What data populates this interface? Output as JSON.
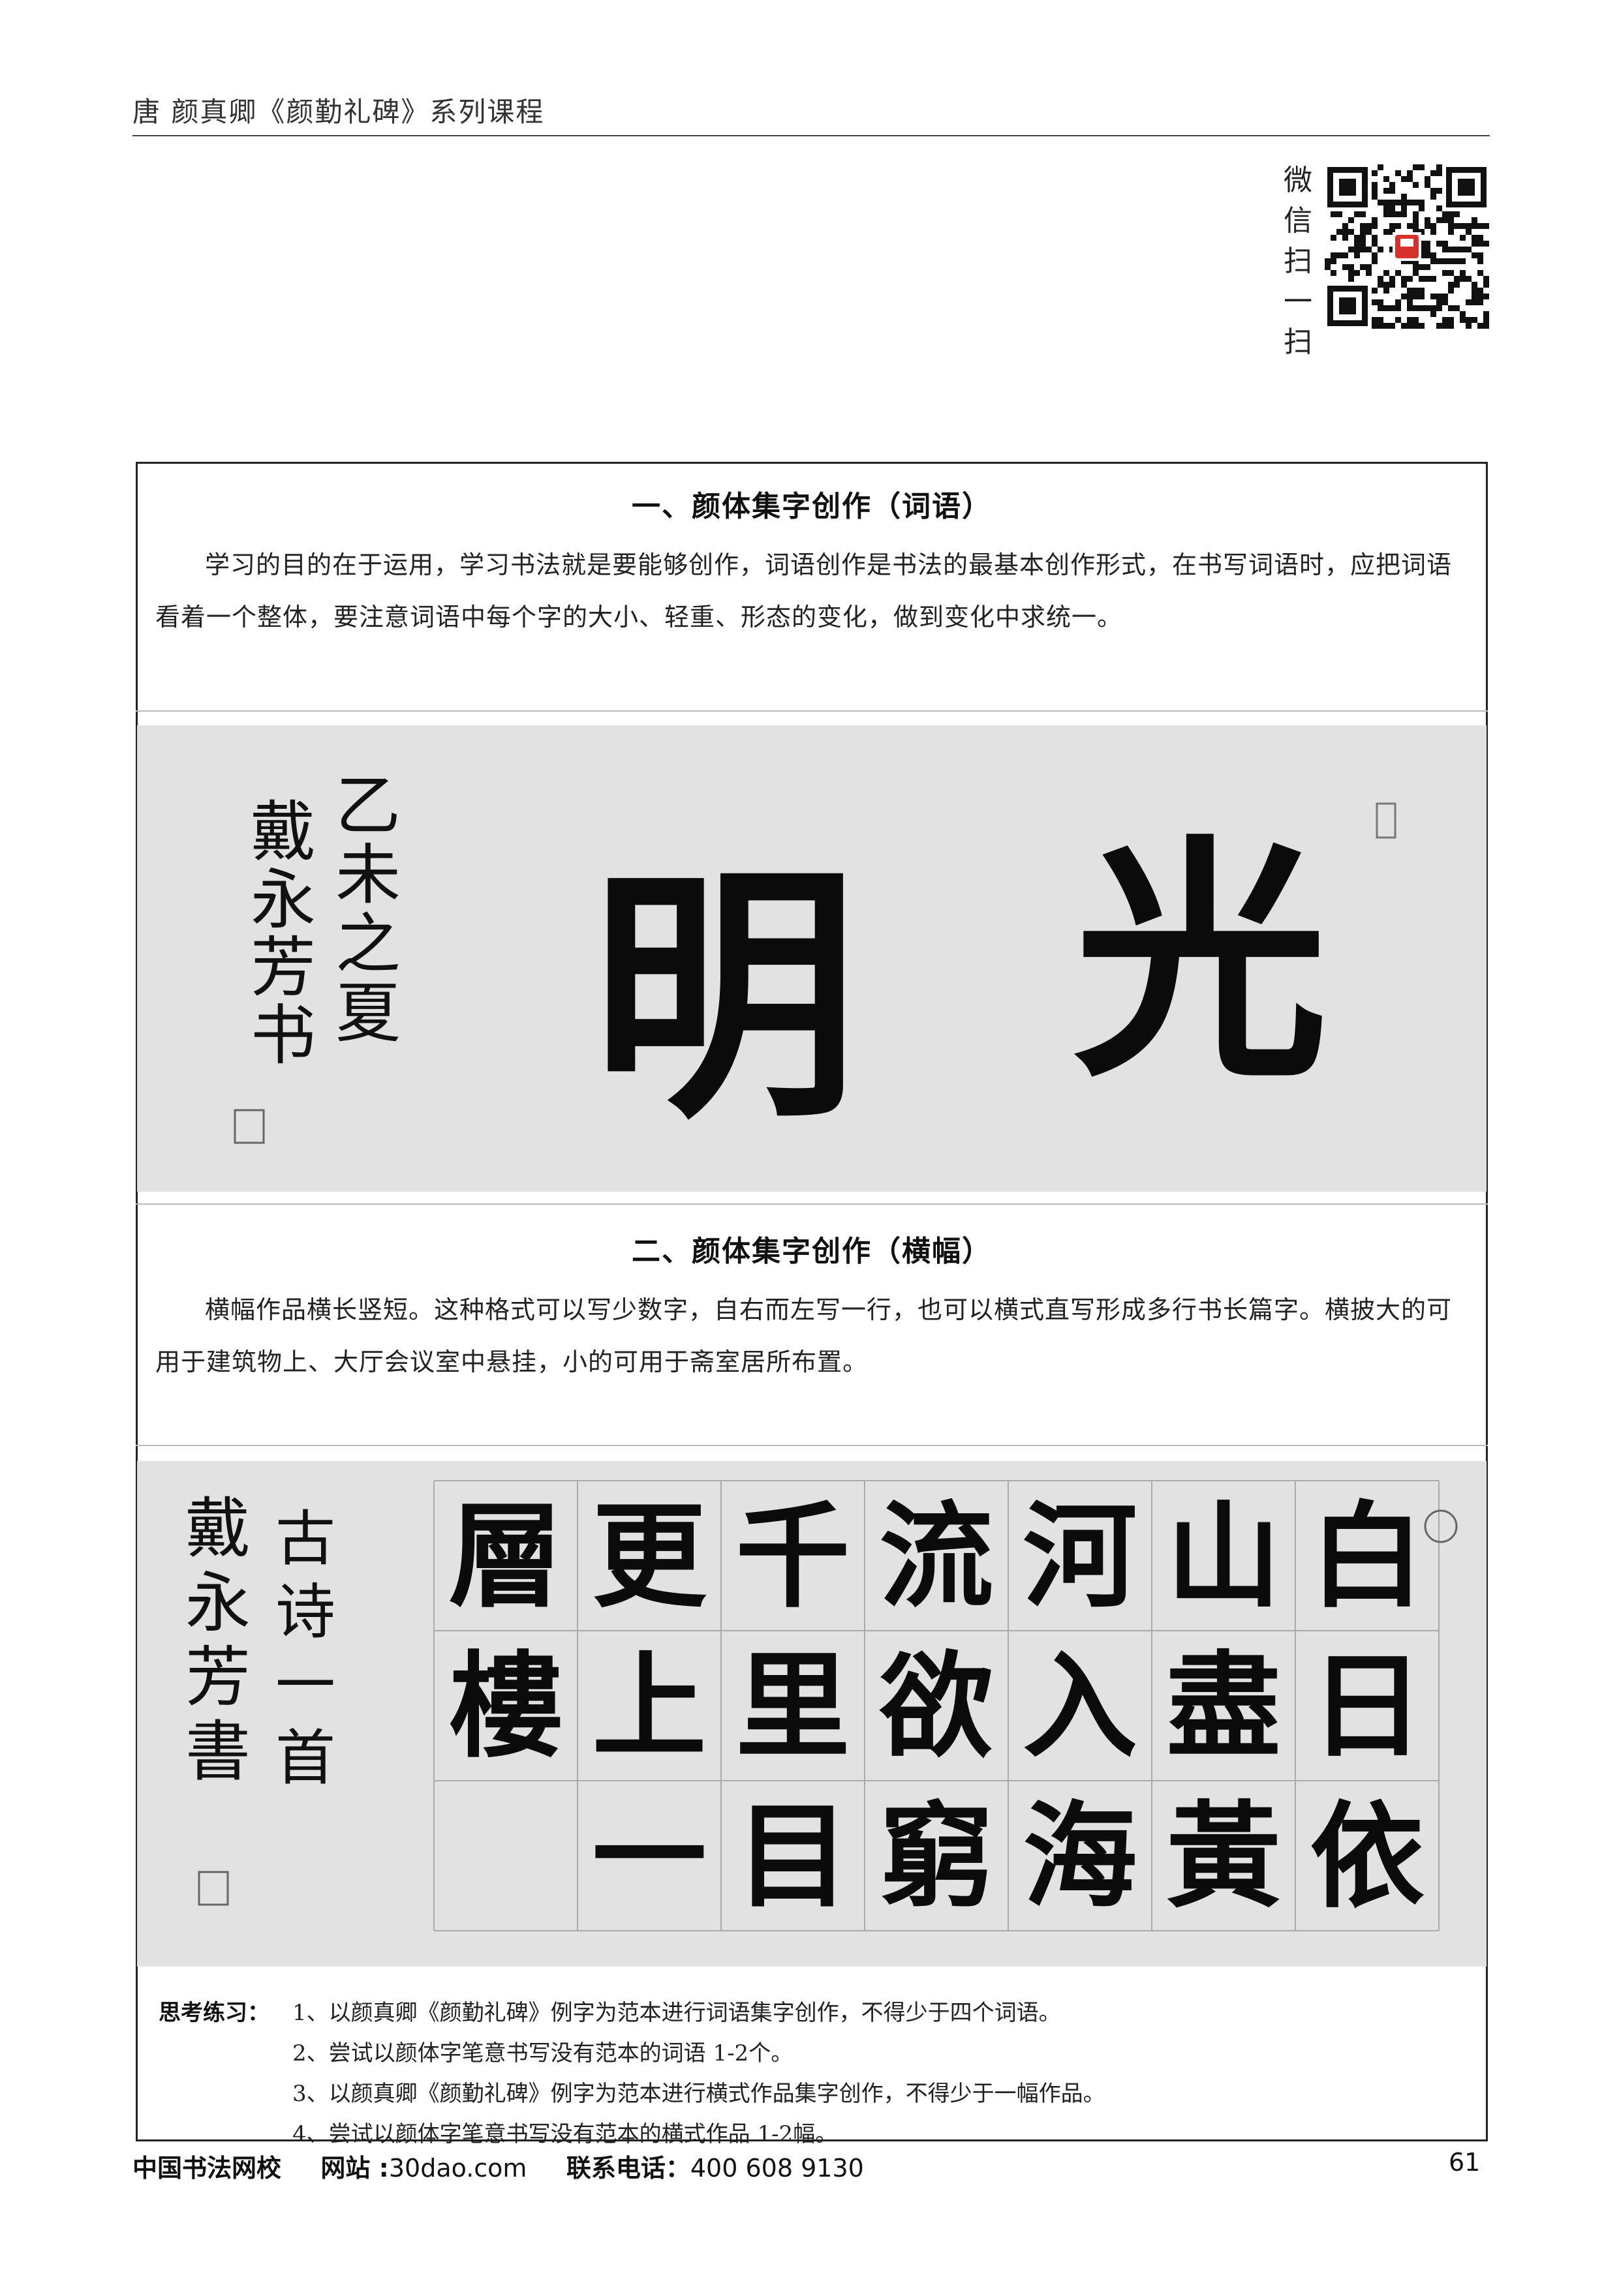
{
  "header": {
    "title": "唐 颜真卿《颜勤礼碑》系列课程"
  },
  "qr": {
    "label": [
      "微",
      "信",
      "扫",
      "一",
      "扫"
    ]
  },
  "section1": {
    "title": "一、颜体集字创作（词语）",
    "body": "学习的目的在于运用，学习书法就是要能够创作，词语创作是书法的最基本创作形式，在书写词语时，应把词语看着一个整体，要注意词语中每个字的大小、轻重、形态的变化，做到变化中求统一。"
  },
  "artwork1": {
    "main_chars": [
      "光",
      "明"
    ],
    "inscription": [
      "乙未之夏",
      "戴永芳书"
    ]
  },
  "section2": {
    "title": "二、颜体集字创作（横幅）",
    "body": "横幅作品横长竖短。这种格式可以写少数字，自右而左写一行，也可以横式直写形成多行书长篇字。横披大的可用于建筑物上、大厅会议室中悬挂，小的可用于斋室居所布置。"
  },
  "artwork2": {
    "columns": [
      [
        "白",
        "日",
        "依"
      ],
      [
        "山",
        "盡",
        "黃"
      ],
      [
        "河",
        "入",
        "海"
      ],
      [
        "流",
        "欲",
        "窮"
      ],
      [
        "千",
        "里",
        "目"
      ],
      [
        "更",
        "上",
        "一"
      ],
      [
        "層",
        "樓"
      ]
    ],
    "inscription": [
      "古诗一首",
      "戴永芳書"
    ]
  },
  "exercises": {
    "label": "思考练习：",
    "items": [
      "1、以颜真卿《颜勤礼碑》例字为范本进行词语集字创作，不得少于四个词语。",
      "2、尝试以颜体字笔意书写没有范本的词语 1-2个。",
      "3、以颜真卿《颜勤礼碑》例字为范本进行横式作品集字创作，不得少于一幅作品。",
      "4、尝试以颜体字笔意书写没有范本的横式作品 1-2幅。"
    ]
  },
  "footer": {
    "school": "中国书法网校",
    "website_label": "网站 :",
    "website": "30dao.com",
    "phone_label": "联系电话：",
    "phone": "400 608 9130",
    "page": "61"
  }
}
